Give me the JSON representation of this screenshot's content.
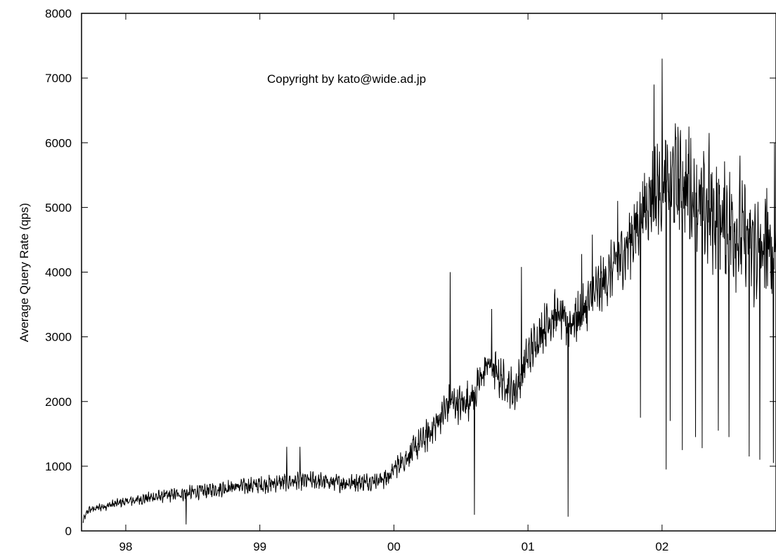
{
  "chart_data": {
    "type": "line",
    "title": "",
    "xlabel": "",
    "ylabel": "Average Query Rate (qps)",
    "annotation": "Copyright by kato@wide.ad.jp",
    "x_unit": "year (decimal)",
    "xlim": [
      1997.67,
      2002.85
    ],
    "ylim": [
      0,
      8000
    ],
    "x_ticks": [
      {
        "value": 1998,
        "label": "98"
      },
      {
        "value": 1999,
        "label": "99"
      },
      {
        "value": 2000,
        "label": "00"
      },
      {
        "value": 2001,
        "label": "01"
      },
      {
        "value": 2002,
        "label": "02"
      }
    ],
    "y_ticks": [
      {
        "value": 0,
        "label": "0"
      },
      {
        "value": 1000,
        "label": "1000"
      },
      {
        "value": 2000,
        "label": "2000"
      },
      {
        "value": 3000,
        "label": "3000"
      },
      {
        "value": 4000,
        "label": "4000"
      },
      {
        "value": 5000,
        "label": "5000"
      },
      {
        "value": 6000,
        "label": "6000"
      },
      {
        "value": 7000,
        "label": "7000"
      },
      {
        "value": 8000,
        "label": "8000"
      }
    ],
    "grid": false,
    "legend": "none",
    "line_color": "#000000",
    "series": [
      {
        "trend": [
          [
            1997.68,
            150
          ],
          [
            1997.72,
            320
          ],
          [
            1997.8,
            360
          ],
          [
            1997.9,
            410
          ],
          [
            1998.0,
            450
          ],
          [
            1998.2,
            520
          ],
          [
            1998.4,
            570
          ],
          [
            1998.6,
            620
          ],
          [
            1998.8,
            680
          ],
          [
            1999.0,
            710
          ],
          [
            1999.2,
            760
          ],
          [
            1999.4,
            780
          ],
          [
            1999.6,
            740
          ],
          [
            1999.8,
            760
          ],
          [
            1999.95,
            820
          ],
          [
            2000.02,
            1000
          ],
          [
            2000.15,
            1250
          ],
          [
            2000.3,
            1600
          ],
          [
            2000.42,
            2000
          ],
          [
            2000.5,
            1950
          ],
          [
            2000.6,
            2100
          ],
          [
            2000.7,
            2600
          ],
          [
            2000.8,
            2350
          ],
          [
            2000.9,
            2150
          ],
          [
            2001.0,
            2700
          ],
          [
            2001.1,
            3100
          ],
          [
            2001.2,
            3350
          ],
          [
            2001.3,
            3200
          ],
          [
            2001.4,
            3350
          ],
          [
            2001.5,
            3650
          ],
          [
            2001.6,
            3950
          ],
          [
            2001.7,
            4250
          ],
          [
            2001.8,
            4650
          ],
          [
            2001.9,
            5150
          ],
          [
            2002.0,
            5350
          ],
          [
            2002.1,
            5450
          ],
          [
            2002.2,
            5250
          ],
          [
            2002.3,
            5000
          ],
          [
            2002.4,
            4850
          ],
          [
            2002.5,
            4750
          ],
          [
            2002.6,
            4550
          ],
          [
            2002.7,
            4350
          ],
          [
            2002.8,
            4250
          ],
          [
            2002.85,
            4300
          ]
        ],
        "noise_envelope": [
          [
            1997.68,
            60
          ],
          [
            1998.0,
            90
          ],
          [
            1998.5,
            130
          ],
          [
            1999.0,
            150
          ],
          [
            1999.9,
            160
          ],
          [
            2000.02,
            220
          ],
          [
            2000.4,
            330
          ],
          [
            2000.9,
            380
          ],
          [
            2001.3,
            420
          ],
          [
            2001.7,
            550
          ],
          [
            2001.9,
            800
          ],
          [
            2002.1,
            950
          ],
          [
            2002.85,
            1000
          ]
        ],
        "spikes": [
          [
            1998.45,
            100
          ],
          [
            1999.2,
            1300
          ],
          [
            1999.3,
            1300
          ],
          [
            2000.42,
            4000
          ],
          [
            2000.6,
            250
          ],
          [
            2000.73,
            3430
          ],
          [
            2000.95,
            4080
          ],
          [
            2001.3,
            220
          ],
          [
            2001.4,
            4280
          ],
          [
            2001.48,
            4580
          ],
          [
            2001.67,
            5100
          ],
          [
            2001.84,
            1750
          ],
          [
            2001.94,
            6900
          ],
          [
            2002.0,
            7300
          ],
          [
            2002.03,
            950
          ],
          [
            2002.06,
            1700
          ],
          [
            2002.1,
            6300
          ],
          [
            2002.15,
            1250
          ],
          [
            2002.2,
            6250
          ],
          [
            2002.25,
            1450
          ],
          [
            2002.3,
            1280
          ],
          [
            2002.35,
            6150
          ],
          [
            2002.42,
            1550
          ],
          [
            2002.5,
            1450
          ],
          [
            2002.58,
            5800
          ],
          [
            2002.65,
            1150
          ],
          [
            2002.73,
            1100
          ],
          [
            2002.78,
            5300
          ],
          [
            2002.83,
            1050
          ],
          [
            2002.84,
            6000
          ]
        ]
      }
    ]
  }
}
